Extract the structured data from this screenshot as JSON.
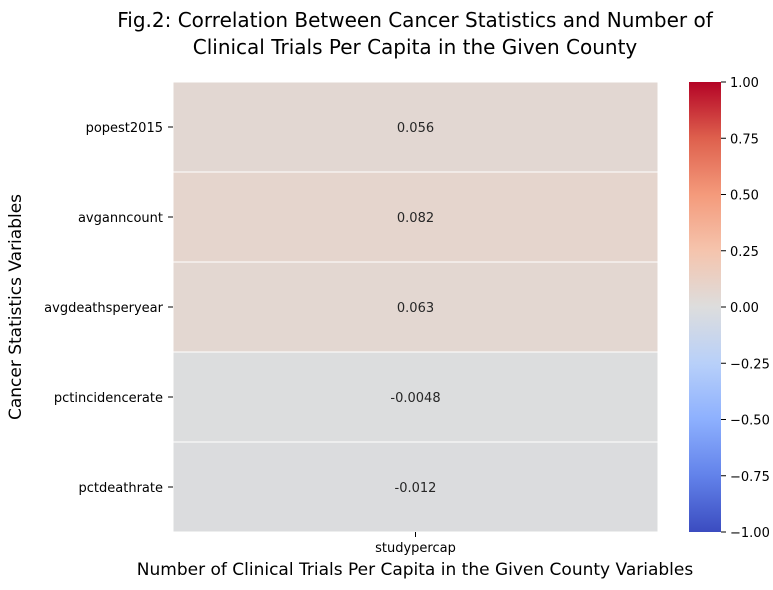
{
  "chart_data": {
    "type": "heatmap",
    "title": "Fig.2: Correlation Between Cancer Statistics and Number of Clinical Trials Per Capita in the Given County",
    "title_lines": [
      "Fig.2: Correlation Between Cancer Statistics and Number of",
      "Clinical Trials Per Capita in the Given County"
    ],
    "xlabel": "Number of Clinical Trials Per Capita in the Given County Variables",
    "ylabel": "Cancer Statistics Variables",
    "columns": [
      "studypercap"
    ],
    "rows": [
      "popest2015",
      "avganncount",
      "avgdeathsperyear",
      "pctincidencerate",
      "pctdeathrate"
    ],
    "values": [
      [
        0.056
      ],
      [
        0.082
      ],
      [
        0.063
      ],
      [
        -0.0048
      ],
      [
        -0.012
      ]
    ],
    "value_labels": [
      [
        "0.056"
      ],
      [
        "0.082"
      ],
      [
        "0.063"
      ],
      [
        "-0.0048"
      ],
      [
        "-0.012"
      ]
    ],
    "colormap": "coolwarm",
    "vmin": -1.0,
    "vmax": 1.0,
    "colorbar_ticks": [
      1.0,
      0.75,
      0.5,
      0.25,
      0.0,
      -0.25,
      -0.5,
      -0.75,
      -1.0
    ],
    "colorbar_tick_labels": [
      "1.00",
      "0.75",
      "0.50",
      "0.25",
      "0.00",
      "−0.25",
      "−0.50",
      "−0.75",
      "−1.00"
    ],
    "colors": {
      "cold": "#3b4cc0",
      "neutral": "#dddddd",
      "warm": "#b40426"
    }
  }
}
